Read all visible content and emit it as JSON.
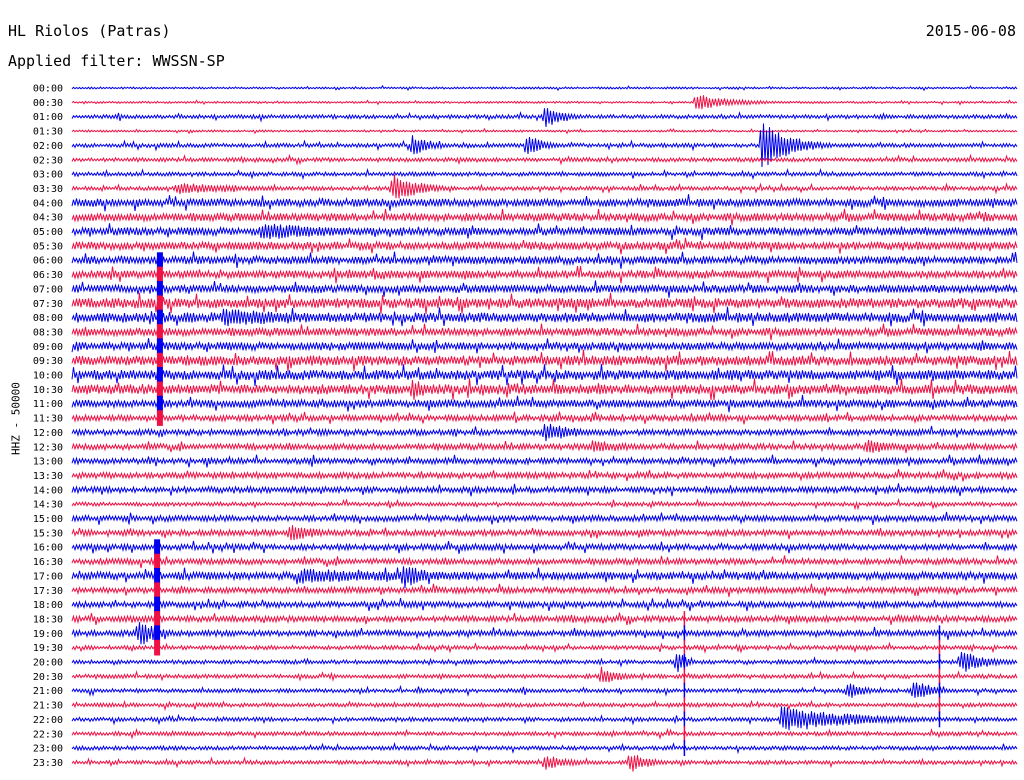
{
  "header": {
    "station": "HL Riolos (Patras)",
    "date": "2015-06-08",
    "filter": "Applied filter: WWSSN-SP",
    "channel_label": "HHZ - 50000"
  },
  "colors": {
    "even_rows": "#0000ee",
    "odd_rows": "#ee1144"
  },
  "chart_data": {
    "type": "line",
    "title": "HL Riolos (Patras)",
    "subtitle": "Applied filter: WWSSN-SP",
    "ylabel": "HHZ - 50000",
    "row_labels": [
      "00:00",
      "00:30",
      "01:00",
      "01:30",
      "02:00",
      "02:30",
      "03:00",
      "03:30",
      "04:00",
      "04:30",
      "05:00",
      "05:30",
      "06:00",
      "06:30",
      "07:00",
      "07:30",
      "08:00",
      "08:30",
      "09:00",
      "09:30",
      "10:00",
      "10:30",
      "11:00",
      "11:30",
      "12:00",
      "12:30",
      "13:00",
      "13:30",
      "14:00",
      "14:30",
      "15:00",
      "15:30",
      "16:00",
      "16:30",
      "17:00",
      "17:30",
      "18:00",
      "18:30",
      "19:00",
      "19:30",
      "20:00",
      "20:30",
      "21:00",
      "21:30",
      "22:00",
      "22:30",
      "23:00",
      "23:30"
    ],
    "noise_level": [
      1,
      1,
      2,
      1,
      2,
      2,
      2,
      2,
      4,
      4,
      4,
      4,
      4,
      4,
      4,
      5,
      5,
      4,
      4,
      5,
      5,
      5,
      4,
      3,
      3,
      3,
      3,
      3,
      3,
      2,
      3,
      3,
      3,
      3,
      4,
      3,
      3,
      3,
      3,
      2,
      2,
      2,
      2,
      2,
      2,
      2,
      2,
      2
    ],
    "events": [
      {
        "row": 1,
        "t": 0.66,
        "amp": 9,
        "dur": 0.04
      },
      {
        "row": 2,
        "t": 0.5,
        "amp": 13,
        "dur": 0.02
      },
      {
        "row": 4,
        "t": 0.36,
        "amp": 12,
        "dur": 0.02
      },
      {
        "row": 4,
        "t": 0.48,
        "amp": 12,
        "dur": 0.02
      },
      {
        "row": 4,
        "t": 0.73,
        "amp": 26,
        "dur": 0.03
      },
      {
        "row": 7,
        "t": 0.34,
        "amp": 15,
        "dur": 0.03
      },
      {
        "row": 7,
        "t": 0.11,
        "amp": 6,
        "dur": 0.08
      },
      {
        "row": 10,
        "t": 0.2,
        "amp": 9,
        "dur": 0.1
      },
      {
        "row": 16,
        "t": 0.16,
        "amp": 10,
        "dur": 0.1
      },
      {
        "row": 21,
        "t": 0.36,
        "amp": 12,
        "dur": 0.02
      },
      {
        "row": 24,
        "t": 0.5,
        "amp": 10,
        "dur": 0.04
      },
      {
        "row": 25,
        "t": 0.55,
        "amp": 8,
        "dur": 0.04
      },
      {
        "row": 25,
        "t": 0.84,
        "amp": 10,
        "dur": 0.03
      },
      {
        "row": 31,
        "t": 0.23,
        "amp": 10,
        "dur": 0.03
      },
      {
        "row": 34,
        "t": 0.24,
        "amp": 8,
        "dur": 0.15
      },
      {
        "row": 34,
        "t": 0.35,
        "amp": 14,
        "dur": 0.03
      },
      {
        "row": 38,
        "t": 0.07,
        "amp": 16,
        "dur": 0.02
      },
      {
        "row": 40,
        "t": 0.64,
        "amp": 15,
        "dur": 0.01
      },
      {
        "row": 40,
        "t": 0.94,
        "amp": 12,
        "dur": 0.03
      },
      {
        "row": 41,
        "t": 0.56,
        "amp": 10,
        "dur": 0.02
      },
      {
        "row": 42,
        "t": 0.82,
        "amp": 10,
        "dur": 0.02
      },
      {
        "row": 42,
        "t": 0.89,
        "amp": 14,
        "dur": 0.02
      },
      {
        "row": 44,
        "t": 0.75,
        "amp": 14,
        "dur": 0.08
      },
      {
        "row": 47,
        "t": 0.5,
        "amp": 8,
        "dur": 0.03
      },
      {
        "row": 47,
        "t": 0.59,
        "amp": 12,
        "dur": 0.02
      }
    ],
    "spikes": [
      {
        "t": 0.093,
        "row_start": 12,
        "row_end": 23
      },
      {
        "t": 0.09,
        "row_start": 32,
        "row_end": 39
      },
      {
        "t": 0.648,
        "row_start": 37,
        "row_end": 46
      },
      {
        "t": 0.918,
        "row_start": 38,
        "row_end": 44
      }
    ]
  }
}
